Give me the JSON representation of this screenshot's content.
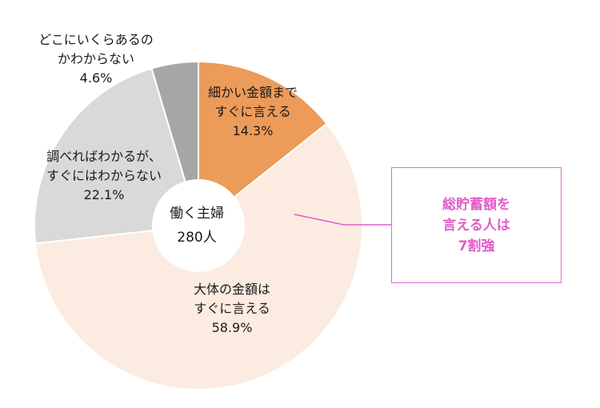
{
  "chart_data": {
    "type": "pie",
    "donut": true,
    "center": {
      "line1": "働く主婦",
      "line2": "280人"
    },
    "slices": [
      {
        "label_lines": [
          "細かい金額まで",
          "すぐに言える"
        ],
        "value": 14.3,
        "value_label": "14.3%",
        "color": "#ec9b59"
      },
      {
        "label_lines": [
          "大体の金額は",
          "すぐに言える"
        ],
        "value": 58.9,
        "value_label": "58.9%",
        "color": "#fbebe0"
      },
      {
        "label_lines": [
          "調べればわかるが、",
          "すぐにはわからない"
        ],
        "value": 22.1,
        "value_label": "22.1%",
        "color": "#d9d9d9"
      },
      {
        "label_lines": [
          "どこにいくらあるの",
          "かわからない"
        ],
        "value": 4.6,
        "value_label": "4.6%",
        "color": "#a6a6a6"
      }
    ],
    "callout": {
      "lines": [
        "総貯蓄額を",
        "言える人は",
        "7割強"
      ],
      "color": "#e35bc8"
    }
  }
}
